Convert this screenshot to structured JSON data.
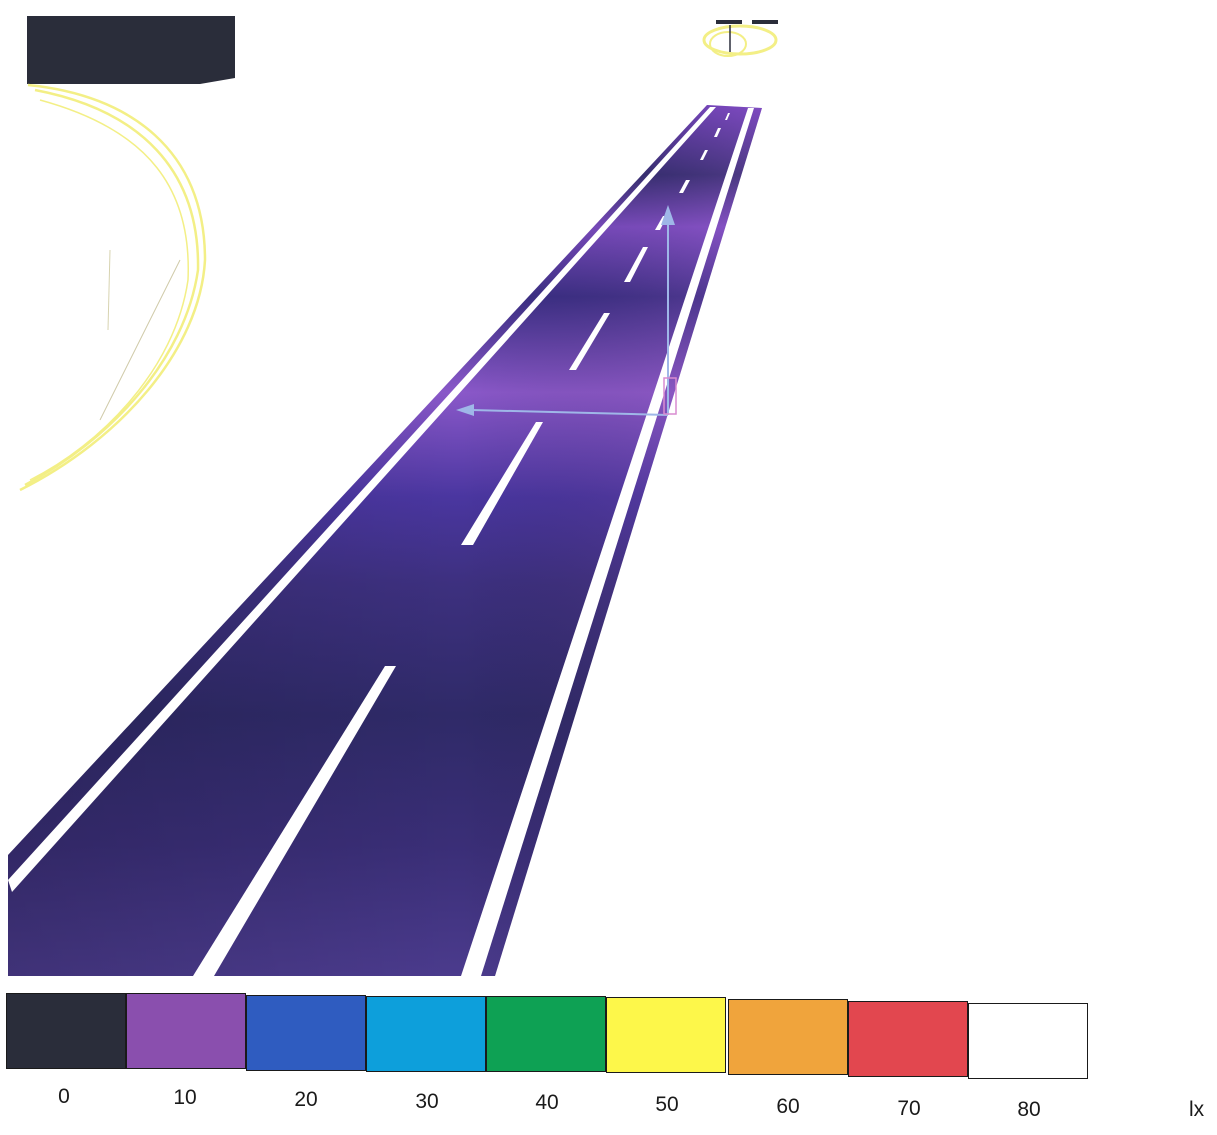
{
  "legend": {
    "colors": [
      "#2a2d3a",
      "#8a4fae",
      "#2f5cc0",
      "#0d9fdb",
      "#0ea154",
      "#fdf74a",
      "#f0a43c",
      "#e2474f",
      "#ffffff"
    ],
    "values": [
      "0",
      "10",
      "20",
      "30",
      "40",
      "50",
      "60",
      "70",
      "80"
    ],
    "unit": "lx"
  },
  "road": {
    "surface_colors": [
      "#2e2a6a",
      "#5b3fa6",
      "#7a4cc0",
      "#3a2f7d"
    ]
  },
  "outline_color": "#f3ef86",
  "arrow_color": "#9fb7e8"
}
